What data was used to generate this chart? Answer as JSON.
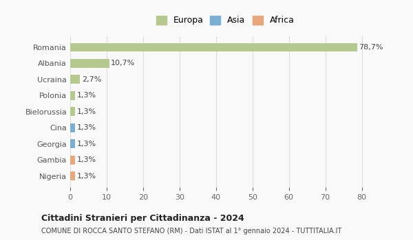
{
  "categories": [
    "Nigeria",
    "Gambia",
    "Georgia",
    "Cina",
    "Bielorussia",
    "Polonia",
    "Ucraina",
    "Albania",
    "Romania"
  ],
  "values": [
    1.3,
    1.3,
    1.3,
    1.3,
    1.3,
    1.3,
    2.7,
    10.7,
    78.7
  ],
  "labels": [
    "1,3%",
    "1,3%",
    "1,3%",
    "1,3%",
    "1,3%",
    "1,3%",
    "2,7%",
    "10,7%",
    "78,7%"
  ],
  "colors": [
    "#e8a87c",
    "#e8a87c",
    "#7bafd4",
    "#7bafd4",
    "#b5c98e",
    "#b5c98e",
    "#b5c98e",
    "#b5c98e",
    "#b5c98e"
  ],
  "legend_names": [
    "Europa",
    "Asia",
    "Africa"
  ],
  "legend_colors": [
    "#b5c98e",
    "#7bafd4",
    "#e8a87c"
  ],
  "xlim": [
    0,
    85
  ],
  "xticks": [
    0,
    10,
    20,
    30,
    40,
    50,
    60,
    70,
    80
  ],
  "title": "Cittadini Stranieri per Cittadinanza - 2024",
  "subtitle": "COMUNE DI ROCCA SANTO STEFANO (RM) - Dati ISTAT al 1° gennaio 2024 - TUTTITALIA.IT",
  "bg_color": "#f9f9f9",
  "grid_color": "#dddddd",
  "bar_height": 0.55
}
